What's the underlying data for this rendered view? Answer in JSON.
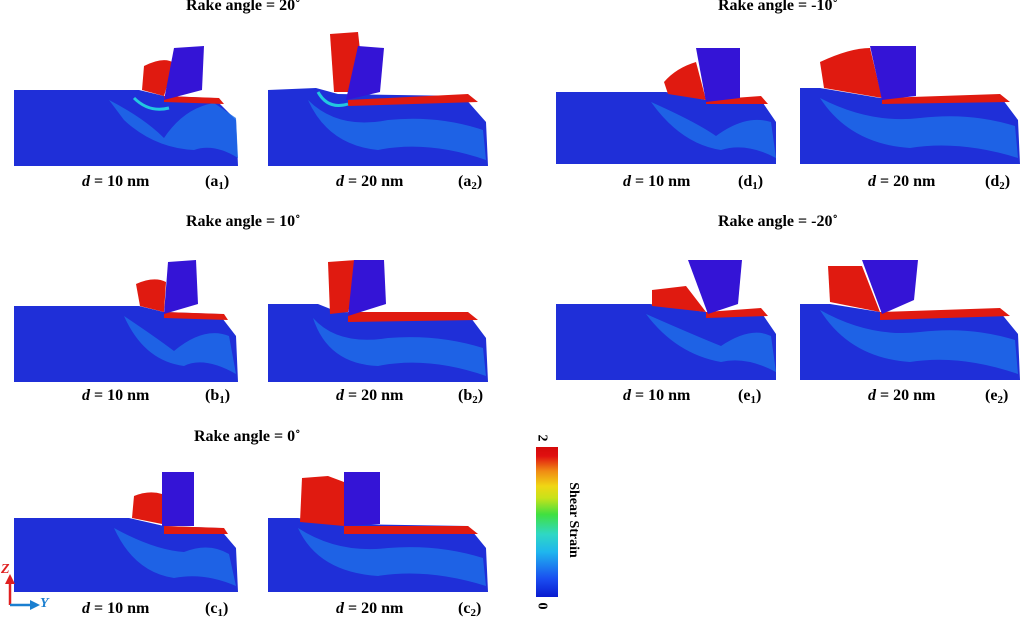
{
  "titles": {
    "a": "Rake angle = 20˚",
    "d": "Rake angle = -10˚",
    "b": "Rake angle = 10˚",
    "e": "Rake angle = -20˚",
    "c": "Rake angle = 0˚"
  },
  "depth": {
    "d_symbol": "d",
    "val10": " = 10 nm",
    "val20": " = 20 nm"
  },
  "tags": {
    "a1": [
      "(a",
      "1",
      ")"
    ],
    "a2": [
      "(a",
      "2",
      ")"
    ],
    "b1": [
      "(b",
      "1",
      ")"
    ],
    "b2": [
      "(b",
      "2",
      ")"
    ],
    "c1": [
      "(c",
      "1",
      ")"
    ],
    "c2": [
      "(c",
      "2",
      ")"
    ],
    "d1": [
      "(d",
      "1",
      ")"
    ],
    "d2": [
      "(d",
      "2",
      ")"
    ],
    "e1": [
      "(e",
      "1",
      ")"
    ],
    "e2": [
      "(e",
      "2",
      ")"
    ]
  },
  "colorbar": {
    "max": "2",
    "min": "0",
    "label": "Shear Strain"
  },
  "axes": {
    "z": "Z",
    "y": "Y",
    "z_color": "#e02020",
    "y_color": "#1a7fd0"
  },
  "colors": {
    "workpiece": "#1f2fd8",
    "chip": "#e01a10",
    "tool": "#3414d6",
    "band": "#22c8e0"
  }
}
